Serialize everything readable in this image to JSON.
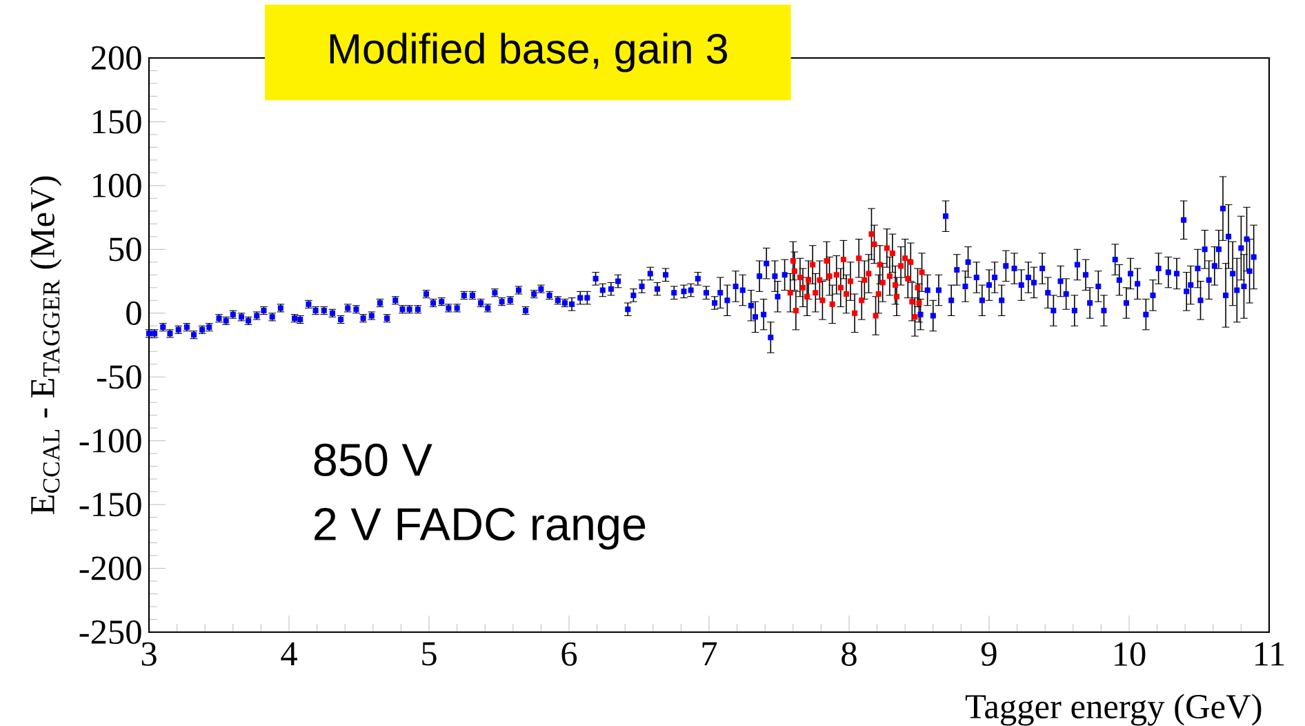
{
  "chart_data": {
    "type": "scatter",
    "title": "Modified base, gain 3",
    "xlabel": "Tagger energy (GeV)",
    "ylabel": "E$_{CCAL}$ - E$_{TAGGER}$   (MeV)",
    "annotations": [
      "850 V",
      "2 V  FADC  range"
    ],
    "xlim": [
      3,
      11
    ],
    "ylim": [
      -250,
      200
    ],
    "xticks": [
      3,
      4,
      5,
      6,
      7,
      8,
      9,
      10,
      11
    ],
    "yticks": [
      -250,
      -200,
      -150,
      -100,
      -50,
      0,
      50,
      100,
      150,
      200
    ],
    "marker": "square",
    "series": [
      {
        "color": "#0000ff",
        "x": [
          3.0,
          3.04,
          3.1,
          3.15,
          3.21,
          3.27,
          3.32,
          3.38,
          3.43,
          3.5,
          3.55,
          3.6,
          3.66,
          3.71,
          3.77,
          3.82,
          3.88,
          3.94,
          4.04,
          4.08,
          4.14,
          4.19,
          4.25,
          4.31,
          4.37,
          4.42,
          4.48,
          4.53,
          4.59,
          4.65,
          4.7,
          4.76,
          4.81,
          4.86,
          4.92,
          4.98,
          5.03,
          5.09,
          5.14,
          5.2,
          5.25,
          5.31,
          5.37,
          5.42,
          5.47,
          5.52,
          5.58,
          5.64,
          5.69,
          5.75,
          5.8,
          5.86,
          5.92,
          5.97,
          6.02,
          6.08,
          6.13,
          6.19,
          6.24,
          6.3,
          6.35,
          6.42,
          6.46,
          6.52,
          6.58,
          6.63,
          6.69,
          6.75,
          6.82,
          6.87,
          6.92,
          6.98,
          7.04,
          7.08,
          7.13,
          7.19,
          7.24,
          7.3,
          7.33,
          7.36,
          7.39,
          7.41,
          7.44,
          7.47,
          7.49,
          7.54,
          8.51,
          8.56,
          8.6,
          8.64,
          8.69,
          8.73,
          8.77,
          8.83,
          8.85,
          8.91,
          8.95,
          9.0,
          9.04,
          9.09,
          9.12,
          9.18,
          9.23,
          9.28,
          9.32,
          9.38,
          9.42,
          9.46,
          9.51,
          9.55,
          9.61,
          9.63,
          9.69,
          9.72,
          9.78,
          9.82,
          9.9,
          9.93,
          9.98,
          10.01,
          10.06,
          10.12,
          10.17,
          10.21,
          10.28,
          10.34,
          10.39,
          10.41,
          10.44,
          10.49,
          10.51,
          10.54,
          10.57,
          10.61,
          10.64,
          10.67,
          10.69,
          10.71,
          10.74,
          10.77,
          10.8,
          10.82,
          10.84,
          10.86,
          10.89
        ],
        "values": [
          -16,
          -16,
          -11,
          -16,
          -13,
          -11,
          -17,
          -13,
          -11,
          -4,
          -6,
          -1,
          -3,
          -6,
          -2,
          2,
          -3,
          4,
          -4,
          -5,
          7,
          2,
          2,
          0,
          -5,
          4,
          3,
          -4,
          -2,
          8,
          -4,
          10,
          3,
          3,
          3,
          15,
          8,
          9,
          4,
          4,
          14,
          14,
          8,
          4,
          16,
          9,
          10,
          18,
          2,
          15,
          19,
          14,
          10,
          8,
          7,
          12,
          12,
          27,
          18,
          19,
          25,
          3,
          14,
          21,
          31,
          19,
          30,
          16,
          17,
          18,
          27,
          16,
          8,
          16,
          10,
          21,
          18,
          6,
          -3,
          29,
          -1,
          39,
          -19,
          29,
          13,
          30,
          -1,
          18,
          -2,
          18,
          76,
          10,
          34,
          21,
          40,
          28,
          10,
          22,
          28,
          10,
          37,
          35,
          22,
          28,
          24,
          35,
          16,
          2,
          25,
          15,
          2,
          38,
          30,
          8,
          21,
          2,
          42,
          26,
          8,
          31,
          23,
          -1,
          14,
          35,
          32,
          31,
          73,
          17,
          22,
          35,
          10,
          50,
          26,
          37,
          50,
          82,
          14,
          60,
          31,
          18,
          51,
          21,
          58,
          33,
          44
        ],
        "errors": [
          3,
          3,
          3,
          3,
          3,
          3,
          3,
          3,
          3,
          3,
          3,
          3,
          3,
          3,
          3,
          3,
          3,
          3,
          3,
          3,
          3,
          3,
          3,
          3,
          3,
          3,
          3,
          3,
          3,
          3,
          3,
          3,
          3,
          3,
          3,
          3,
          3,
          3,
          3,
          3,
          3,
          3,
          3,
          3,
          3,
          3,
          3,
          3,
          3,
          3,
          3,
          3,
          3,
          3,
          5,
          5,
          5,
          5,
          5,
          5,
          5,
          5,
          5,
          5,
          5,
          5,
          5,
          5,
          5,
          5,
          5,
          5,
          5,
          12,
          12,
          12,
          12,
          12,
          12,
          12,
          12,
          12,
          12,
          12,
          12,
          12,
          12,
          12,
          12,
          12,
          12,
          12,
          12,
          12,
          12,
          12,
          12,
          12,
          12,
          12,
          12,
          12,
          12,
          12,
          12,
          12,
          12,
          12,
          12,
          12,
          12,
          12,
          12,
          12,
          12,
          12,
          12,
          12,
          12,
          12,
          12,
          12,
          12,
          12,
          12,
          12,
          15,
          15,
          15,
          15,
          15,
          15,
          15,
          15,
          15,
          25,
          25,
          25,
          25,
          25,
          25,
          25,
          25,
          25,
          25
        ]
      },
      {
        "color": "#ff0000",
        "x": [
          7.58,
          7.6,
          7.61,
          7.62,
          7.65,
          7.67,
          7.7,
          7.71,
          7.74,
          7.76,
          7.79,
          7.81,
          7.84,
          7.86,
          7.88,
          7.91,
          7.94,
          7.96,
          7.98,
          8.01,
          8.04,
          8.07,
          8.09,
          8.11,
          8.14,
          8.16,
          8.18,
          8.19,
          8.21,
          8.22,
          8.24,
          8.27,
          8.29,
          8.31,
          8.33,
          8.34,
          8.37,
          8.4,
          8.42,
          8.44,
          8.45,
          8.47,
          8.49,
          8.5,
          8.52
        ],
        "values": [
          16,
          41,
          33,
          2,
          28,
          20,
          13,
          26,
          38,
          16,
          26,
          10,
          41,
          29,
          7,
          30,
          20,
          42,
          15,
          25,
          0,
          43,
          10,
          26,
          31,
          62,
          54,
          -2,
          15,
          38,
          24,
          51,
          29,
          47,
          22,
          13,
          37,
          43,
          27,
          40,
          9,
          -3,
          20,
          8,
          32
        ],
        "errors": [
          15,
          15,
          15,
          15,
          15,
          15,
          15,
          15,
          15,
          15,
          15,
          15,
          15,
          15,
          15,
          15,
          15,
          15,
          15,
          15,
          15,
          15,
          15,
          15,
          15,
          20,
          15,
          15,
          15,
          15,
          15,
          15,
          15,
          15,
          15,
          15,
          15,
          15,
          15,
          15,
          15,
          15,
          15,
          15,
          15
        ]
      }
    ]
  }
}
